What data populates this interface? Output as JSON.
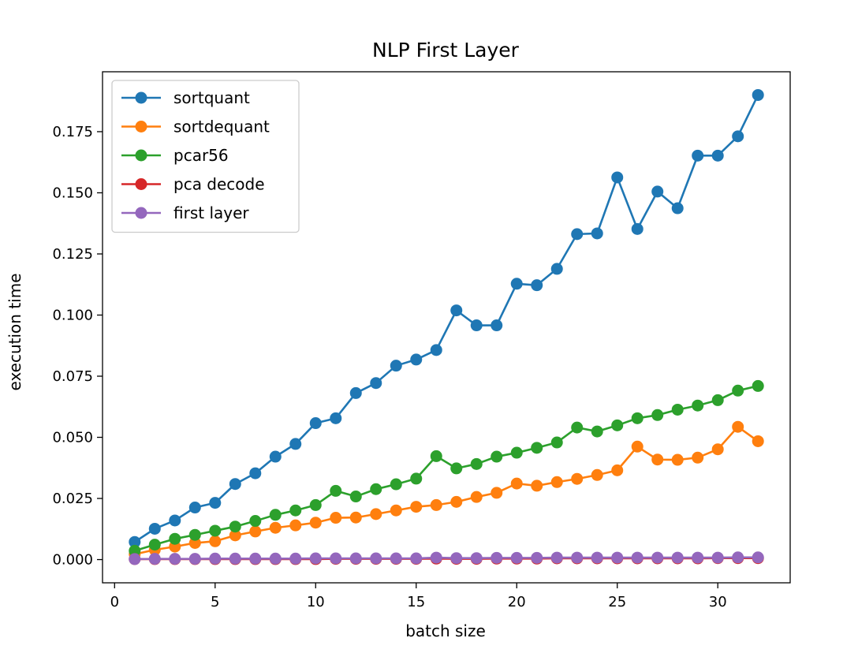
{
  "chart_data": {
    "type": "line",
    "title": "NLP First Layer",
    "xlabel": "batch size",
    "ylabel": "execution time",
    "xlim": [
      -0.6,
      33.6
    ],
    "ylim": [
      -0.0095,
      0.1995
    ],
    "xticks": [
      0,
      5,
      10,
      15,
      20,
      25,
      30
    ],
    "xtick_labels": [
      "0",
      "5",
      "10",
      "15",
      "20",
      "25",
      "30"
    ],
    "yticks": [
      0.0,
      0.025,
      0.05,
      0.075,
      0.1,
      0.125,
      0.15,
      0.175
    ],
    "ytick_labels": [
      "0.000",
      "0.025",
      "0.050",
      "0.075",
      "0.100",
      "0.125",
      "0.150",
      "0.175"
    ],
    "grid": false,
    "legend_position": "top-left",
    "x": [
      1,
      2,
      3,
      4,
      5,
      6,
      7,
      8,
      9,
      10,
      11,
      12,
      13,
      14,
      15,
      16,
      17,
      18,
      19,
      20,
      21,
      22,
      23,
      24,
      25,
      26,
      27,
      28,
      29,
      30,
      31,
      32
    ],
    "series": [
      {
        "name": "sortquant",
        "color": "#1f77b4",
        "values": [
          0.0072,
          0.0126,
          0.016,
          0.0213,
          0.0232,
          0.0309,
          0.0353,
          0.0421,
          0.0473,
          0.0558,
          0.0578,
          0.0681,
          0.0722,
          0.0793,
          0.0818,
          0.0857,
          0.1019,
          0.0958,
          0.0958,
          0.1128,
          0.1122,
          0.1189,
          0.1331,
          0.1334,
          0.1563,
          0.1352,
          0.1505,
          0.1437,
          0.1652,
          0.1652,
          0.1731,
          0.19
        ]
      },
      {
        "name": "sortdequant",
        "color": "#ff7f0e",
        "values": [
          0.0022,
          0.004,
          0.0053,
          0.0068,
          0.0075,
          0.0099,
          0.0115,
          0.013,
          0.014,
          0.0151,
          0.0171,
          0.0172,
          0.0186,
          0.0201,
          0.0216,
          0.0223,
          0.0236,
          0.0256,
          0.0273,
          0.0311,
          0.0302,
          0.0317,
          0.033,
          0.0346,
          0.0365,
          0.0462,
          0.0409,
          0.0408,
          0.0417,
          0.0451,
          0.0543,
          0.0484
        ]
      },
      {
        "name": "pcar56",
        "color": "#2ca02c",
        "values": [
          0.0036,
          0.0061,
          0.0085,
          0.0101,
          0.0118,
          0.0135,
          0.0158,
          0.0183,
          0.0201,
          0.0223,
          0.0281,
          0.0258,
          0.0288,
          0.0308,
          0.0331,
          0.0423,
          0.0373,
          0.0391,
          0.0421,
          0.0437,
          0.0457,
          0.0479,
          0.054,
          0.0524,
          0.0549,
          0.0578,
          0.0591,
          0.0613,
          0.063,
          0.0652,
          0.0691,
          0.071
        ]
      },
      {
        "name": "pca decode",
        "color": "#d62728",
        "values": [
          0.0002,
          0.0002,
          0.0002,
          0.0002,
          0.0002,
          0.0002,
          0.0002,
          0.0002,
          0.0002,
          0.0002,
          0.0003,
          0.0003,
          0.0003,
          0.0003,
          0.0003,
          0.0004,
          0.0003,
          0.0003,
          0.0004,
          0.0004,
          0.0004,
          0.0005,
          0.0005,
          0.0005,
          0.0005,
          0.0005,
          0.0005,
          0.0005,
          0.0005,
          0.0006,
          0.0006,
          0.0006
        ]
      },
      {
        "name": "first layer",
        "color": "#9467bd",
        "values": [
          0.0002,
          0.0003,
          0.0003,
          0.0003,
          0.0004,
          0.0004,
          0.0004,
          0.0004,
          0.0004,
          0.0005,
          0.0005,
          0.0005,
          0.0005,
          0.0005,
          0.0005,
          0.0008,
          0.0006,
          0.0006,
          0.0007,
          0.0007,
          0.0007,
          0.0008,
          0.0008,
          0.0008,
          0.0008,
          0.0008,
          0.0008,
          0.0008,
          0.0008,
          0.0008,
          0.0009,
          0.0009
        ]
      }
    ]
  }
}
